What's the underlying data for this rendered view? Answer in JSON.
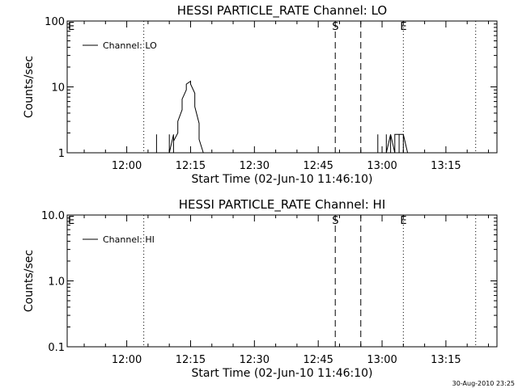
{
  "chart_data": [
    {
      "type": "line",
      "title": "HESSI PARTICLE_RATE Channel: LO",
      "xlabel": "Start Time (02-Jun-10 11:46:10)",
      "ylabel": "Counts/sec",
      "y_scale": "log",
      "ylim": [
        1,
        100
      ],
      "y_ticks": [
        1,
        10,
        100
      ],
      "y_tick_labels": [
        "1",
        "10",
        "100"
      ],
      "xlim": [
        "11:46",
        "13:27"
      ],
      "x_ticks": [
        "12:00",
        "12:15",
        "12:30",
        "12:45",
        "13:00",
        "13:15"
      ],
      "legend": {
        "placement": "top-left",
        "entries": [
          "Channel: LO"
        ]
      },
      "markers": [
        {
          "label": "E",
          "time": "11:46",
          "style": "none"
        },
        {
          "label": "",
          "time": "12:04",
          "style": "dotted"
        },
        {
          "label": "S",
          "time": "12:49",
          "style": "dashed"
        },
        {
          "label": "",
          "time": "12:55",
          "style": "dashed"
        },
        {
          "label": "E",
          "time": "13:05",
          "style": "dotted"
        },
        {
          "label": "",
          "time": "13:22",
          "style": "dotted"
        }
      ],
      "series": [
        {
          "name": "Channel: LO",
          "x": [
            "12:07",
            "12:07",
            "12:07",
            "12:10",
            "12:10",
            "12:10",
            "12:10",
            "12:11",
            "12:11",
            "12:11",
            "12:11",
            "12:11",
            "12:12",
            "12:12",
            "12:13",
            "12:13",
            "12:14",
            "12:14",
            "12:15",
            "12:15",
            "12:16",
            "12:16",
            "12:17",
            "12:17",
            "12:18",
            "12:59",
            "12:59",
            "12:59",
            "13:01",
            "13:01",
            "13:01",
            "13:01",
            "13:02",
            "13:02",
            "13:02",
            "13:03",
            "13:03",
            "13:03",
            "13:03",
            "13:04",
            "13:04",
            "13:04",
            "13:05",
            "13:05",
            "13:05",
            "13:06",
            "13:06"
          ],
          "y": [
            1.0,
            1.9,
            1.0,
            1.0,
            1.9,
            1.0,
            1.0,
            1.9,
            1.0,
            1.9,
            1.0,
            1.5,
            2.0,
            3.0,
            4.5,
            6.5,
            9.0,
            11.0,
            12.2,
            11.0,
            8.0,
            5.0,
            2.8,
            1.6,
            1.0,
            1.0,
            1.9,
            1.0,
            1.0,
            1.9,
            1.0,
            1.0,
            1.9,
            1.0,
            1.9,
            1.0,
            1.9,
            1.0,
            1.9,
            1.9,
            1.0,
            1.9,
            1.9,
            1.0,
            1.9,
            1.0,
            1.0
          ]
        }
      ]
    },
    {
      "type": "line",
      "title": "HESSI PARTICLE_RATE Channel: HI",
      "xlabel": "Start Time (02-Jun-10 11:46:10)",
      "ylabel": "Counts/sec",
      "y_scale": "log",
      "ylim": [
        0.1,
        10
      ],
      "y_ticks": [
        0.1,
        1,
        10
      ],
      "y_tick_labels": [
        "0.1",
        "1.0",
        "10.0"
      ],
      "xlim": [
        "11:46",
        "13:27"
      ],
      "x_ticks": [
        "12:00",
        "12:15",
        "12:30",
        "12:45",
        "13:00",
        "13:15"
      ],
      "legend": {
        "placement": "top-left",
        "entries": [
          "Channel: HI"
        ]
      },
      "markers": [
        {
          "label": "E",
          "time": "11:46",
          "style": "none"
        },
        {
          "label": "",
          "time": "12:04",
          "style": "dotted"
        },
        {
          "label": "S",
          "time": "12:49",
          "style": "dashed"
        },
        {
          "label": "",
          "time": "12:55",
          "style": "dashed"
        },
        {
          "label": "E",
          "time": "13:05",
          "style": "dotted"
        },
        {
          "label": "",
          "time": "13:22",
          "style": "dotted"
        }
      ],
      "series": [
        {
          "name": "Channel: HI",
          "x": [],
          "y": []
        }
      ]
    }
  ],
  "footer": {
    "timestamp": "30-Aug-2010 23:25"
  }
}
